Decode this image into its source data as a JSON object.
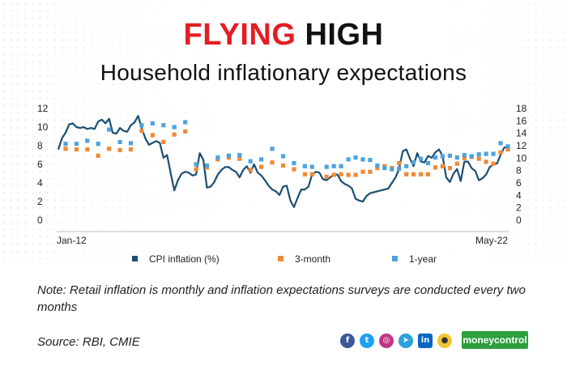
{
  "header": {
    "title_part1": "FLYING",
    "title_part2": "HIGH",
    "subtitle": "Household inflationary expectations"
  },
  "chart_data": {
    "type": "line",
    "x_start_label": "Jan-12",
    "x_end_label": "May-22",
    "y_left": {
      "min": 0,
      "max": 12,
      "ticks": [
        0,
        2,
        4,
        6,
        8,
        10,
        12
      ]
    },
    "y_right": {
      "min": 0,
      "max": 18,
      "ticks": [
        0,
        2,
        4,
        6,
        8,
        10,
        12,
        14,
        16,
        18
      ]
    },
    "legend_placement": "bottom",
    "series": [
      {
        "name": "CPI inflation (%)",
        "axis": "left",
        "color": "#1b4f72",
        "x": [
          "2012-01",
          "2012-02",
          "2012-03",
          "2012-04",
          "2012-05",
          "2012-06",
          "2012-07",
          "2012-08",
          "2012-09",
          "2012-10",
          "2012-11",
          "2012-12",
          "2013-01",
          "2013-02",
          "2013-03",
          "2013-04",
          "2013-05",
          "2013-06",
          "2013-07",
          "2013-08",
          "2013-09",
          "2013-10",
          "2013-11",
          "2013-12",
          "2014-01",
          "2014-02",
          "2014-03",
          "2014-04",
          "2014-05",
          "2014-06",
          "2014-07",
          "2014-08",
          "2014-09",
          "2014-10",
          "2014-11",
          "2014-12",
          "2015-01",
          "2015-02",
          "2015-03",
          "2015-04",
          "2015-05",
          "2015-06",
          "2015-07",
          "2015-08",
          "2015-09",
          "2015-10",
          "2015-11",
          "2015-12",
          "2016-01",
          "2016-02",
          "2016-03",
          "2016-04",
          "2016-05",
          "2016-06",
          "2016-07",
          "2016-08",
          "2016-09",
          "2016-10",
          "2016-11",
          "2016-12",
          "2017-01",
          "2017-02",
          "2017-03",
          "2017-04",
          "2017-05",
          "2017-06",
          "2017-07",
          "2017-08",
          "2017-09",
          "2017-10",
          "2017-11",
          "2017-12",
          "2018-01",
          "2018-02",
          "2018-03",
          "2018-04",
          "2018-05",
          "2018-06",
          "2018-07",
          "2018-08",
          "2018-09",
          "2018-10",
          "2018-11",
          "2018-12",
          "2019-01",
          "2019-02",
          "2019-03",
          "2019-04",
          "2019-05",
          "2019-06",
          "2019-07",
          "2019-08",
          "2019-09",
          "2019-10",
          "2019-11",
          "2019-12",
          "2020-01",
          "2020-02",
          "2020-03",
          "2020-04",
          "2020-05",
          "2020-06",
          "2020-07",
          "2020-08",
          "2020-09",
          "2020-10",
          "2020-11",
          "2020-12",
          "2021-01",
          "2021-02",
          "2021-03",
          "2021-04",
          "2021-05",
          "2021-06",
          "2021-07",
          "2021-08",
          "2021-09",
          "2021-10",
          "2021-11",
          "2021-12",
          "2022-01",
          "2022-02",
          "2022-03",
          "2022-04",
          "2022-05"
        ],
        "values": [
          7.6,
          8.8,
          9.4,
          10.3,
          10.4,
          10.0,
          9.9,
          10.0,
          9.8,
          9.9,
          9.8,
          10.6,
          10.8,
          10.4,
          10.9,
          9.4,
          9.3,
          9.9,
          9.6,
          9.5,
          10.2,
          10.5,
          11.2,
          9.9,
          8.8,
          8.1,
          8.3,
          8.5,
          8.3,
          6.7,
          7.0,
          5.0,
          3.2,
          4.3,
          5.0,
          5.2,
          5.1,
          4.8,
          4.9,
          7.2,
          6.5,
          3.5,
          3.6,
          4.1,
          4.9,
          5.4,
          5.7,
          5.7,
          5.4,
          5.2,
          4.6,
          5.4,
          5.8,
          5.1,
          6.0,
          5.1,
          4.8,
          4.3,
          3.7,
          3.3,
          3.1,
          2.7,
          3.6,
          3.7,
          2.1,
          1.4,
          2.4,
          3.3,
          3.3,
          3.6,
          4.9,
          5.2,
          5.1,
          4.4,
          4.3,
          4.6,
          4.9,
          4.9,
          4.2,
          3.9,
          3.7,
          3.4,
          2.3,
          2.1,
          2.0,
          2.6,
          2.9,
          3.0,
          3.1,
          3.2,
          3.3,
          3.4,
          4.0,
          4.6,
          5.5,
          7.4,
          7.6,
          6.6,
          5.8,
          7.2,
          6.3,
          6.2,
          6.9,
          6.7,
          7.3,
          7.6,
          6.9,
          4.6,
          4.1,
          5.0,
          5.5,
          4.2,
          6.3,
          6.3,
          5.6,
          5.3,
          4.3,
          4.5,
          4.9,
          5.7,
          6.0,
          6.1,
          7.0,
          7.8,
          7.9
        ],
        "points_shown": "line"
      },
      {
        "name": "3-month",
        "axis": "right",
        "color": "#f08a36",
        "x": [
          "2012-03",
          "2012-06",
          "2012-09",
          "2012-12",
          "2013-03",
          "2013-06",
          "2013-09",
          "2013-12",
          "2014-03",
          "2014-06",
          "2014-09",
          "2014-12",
          "2015-03",
          "2015-06",
          "2015-09",
          "2015-12",
          "2016-03",
          "2016-06",
          "2016-09",
          "2016-12",
          "2017-03",
          "2017-06",
          "2017-09",
          "2017-11",
          "2018-03",
          "2018-05",
          "2018-07",
          "2018-09",
          "2018-11",
          "2019-01",
          "2019-03",
          "2019-05",
          "2019-07",
          "2019-09",
          "2019-11",
          "2020-01",
          "2020-03",
          "2020-05",
          "2020-07",
          "2020-09",
          "2020-11",
          "2021-01",
          "2021-03",
          "2021-05",
          "2021-07",
          "2021-09",
          "2021-11",
          "2022-01",
          "2022-03",
          "2022-05"
        ],
        "values": [
          11.5,
          11.4,
          11.4,
          10.4,
          11.5,
          11.3,
          11.4,
          14.4,
          13.7,
          12.6,
          13.8,
          14.3,
          8.2,
          8.5,
          9.8,
          10.1,
          9.9,
          8.1,
          8.6,
          9.3,
          8.8,
          8.2,
          7.4,
          7.4,
          7.0,
          7.3,
          7.4,
          7.3,
          7.3,
          7.8,
          7.8,
          8.4,
          8.7,
          8.4,
          9.2,
          7.4,
          7.4,
          7.4,
          7.4,
          8.5,
          8.7,
          8.4,
          9.1,
          10.0,
          10.2,
          9.9,
          9.4,
          9.1,
          10.9,
          11.4
        ],
        "points_shown": "markers"
      },
      {
        "name": "1-year",
        "axis": "right",
        "color": "#4ea3dd",
        "x": [
          "2012-03",
          "2012-06",
          "2012-09",
          "2012-12",
          "2013-03",
          "2013-06",
          "2013-09",
          "2013-12",
          "2014-03",
          "2014-06",
          "2014-09",
          "2014-12",
          "2015-03",
          "2015-06",
          "2015-09",
          "2015-12",
          "2016-03",
          "2016-06",
          "2016-09",
          "2016-12",
          "2017-03",
          "2017-06",
          "2017-09",
          "2017-11",
          "2018-03",
          "2018-05",
          "2018-07",
          "2018-09",
          "2018-11",
          "2019-01",
          "2019-03",
          "2019-05",
          "2019-07",
          "2019-09",
          "2019-11",
          "2020-01",
          "2020-03",
          "2020-05",
          "2020-07",
          "2020-09",
          "2020-11",
          "2021-01",
          "2021-03",
          "2021-05",
          "2021-07",
          "2021-09",
          "2021-11",
          "2022-01",
          "2022-03",
          "2022-05"
        ],
        "values": [
          12.3,
          12.3,
          12.8,
          12.3,
          14.6,
          12.6,
          12.4,
          15.3,
          15.6,
          15.3,
          15.0,
          15.8,
          9.0,
          8.8,
          10.1,
          10.4,
          10.5,
          9.5,
          9.8,
          11.5,
          10.3,
          9.2,
          8.7,
          8.6,
          8.6,
          8.7,
          8.7,
          9.8,
          10.1,
          9.8,
          9.7,
          8.8,
          8.4,
          8.2,
          8.3,
          8.7,
          9.3,
          9.9,
          9.2,
          10.1,
          10.3,
          10.4,
          10.1,
          10.5,
          10.3,
          10.6,
          10.7,
          10.7,
          12.4,
          11.9
        ],
        "points_shown": "markers"
      }
    ]
  },
  "legend": {
    "cpi": "CPI inflation (%)",
    "three_month": "3-month",
    "one_year": "1-year"
  },
  "note": "Note: Retail inflation is monthly and inflation expectations surveys are conducted every two months",
  "source": "Source: RBI, CMIE",
  "social_icons": [
    "facebook-icon",
    "twitter-icon",
    "instagram-icon",
    "telegram-icon",
    "linkedin-icon",
    "koo-icon"
  ],
  "brand": "moneycontrol"
}
